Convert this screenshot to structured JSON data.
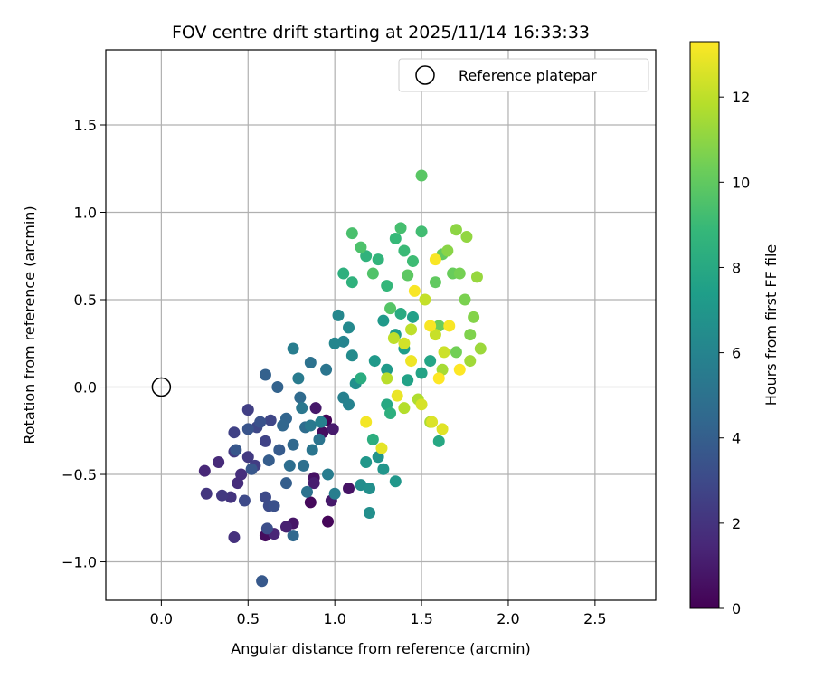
{
  "chart_data": {
    "type": "scatter",
    "title": "FOV centre drift starting at 2025/11/14 16:33:33",
    "xlabel": "Angular distance from reference (arcmin)",
    "ylabel": "Rotation from reference (arcmin)",
    "xlim": [
      -0.32,
      2.85
    ],
    "ylim": [
      -1.22,
      1.93
    ],
    "xticks": [
      0.0,
      0.5,
      1.0,
      1.5,
      2.0,
      2.5
    ],
    "xtick_labels": [
      "0.0",
      "0.5",
      "1.0",
      "1.5",
      "2.0",
      "2.5"
    ],
    "yticks": [
      -1.0,
      -0.5,
      0.0,
      0.5,
      1.0,
      1.5
    ],
    "ytick_labels": [
      "−1.0",
      "−0.5",
      "0.0",
      "0.5",
      "1.0",
      "1.5"
    ],
    "grid": true,
    "legend": {
      "placement": "top-right",
      "entries": [
        "Reference platepar"
      ]
    },
    "reference_point": {
      "label": "Reference platepar",
      "x": 0.0,
      "y": 0.0
    },
    "colorbar": {
      "label": "Hours from first FF file",
      "range": [
        0,
        13.3
      ],
      "ticks": [
        0,
        2,
        4,
        6,
        8,
        10,
        12
      ],
      "tick_labels": [
        "0",
        "2",
        "4",
        "6",
        "8",
        "10",
        "12"
      ],
      "colormap": "viridis"
    },
    "colormap_stops": [
      "#440154",
      "#482878",
      "#3e4989",
      "#31688e",
      "#26828e",
      "#1f9e89",
      "#35b779",
      "#6ece58",
      "#b5de2b",
      "#fde725"
    ],
    "series": [
      {
        "name": "FOV centre",
        "points": [
          [
            0.95,
            -0.19,
            0.1
          ],
          [
            0.96,
            -0.77,
            0.2
          ],
          [
            0.86,
            -0.66,
            0.3
          ],
          [
            0.6,
            -0.85,
            0.4
          ],
          [
            0.93,
            -0.26,
            0.5
          ],
          [
            0.88,
            -0.52,
            0.6
          ],
          [
            1.08,
            -0.58,
            0.7
          ],
          [
            0.76,
            -0.78,
            0.8
          ],
          [
            0.89,
            -0.12,
            0.9
          ],
          [
            0.98,
            -0.65,
            0.9
          ],
          [
            0.99,
            -0.24,
            1.0
          ],
          [
            0.88,
            -0.55,
            1.1
          ],
          [
            0.72,
            -0.8,
            1.2
          ],
          [
            0.65,
            -0.84,
            1.4
          ],
          [
            0.25,
            -0.48,
            1.5
          ],
          [
            0.33,
            -0.43,
            1.6
          ],
          [
            0.44,
            -0.55,
            1.7
          ],
          [
            0.46,
            -0.5,
            1.8
          ],
          [
            0.42,
            -0.86,
            1.9
          ],
          [
            0.4,
            -0.63,
            2.0
          ],
          [
            0.26,
            -0.61,
            2.1
          ],
          [
            0.35,
            -0.62,
            2.2
          ],
          [
            0.42,
            -0.37,
            2.3
          ],
          [
            0.5,
            -0.4,
            2.3
          ],
          [
            0.54,
            -0.45,
            2.4
          ],
          [
            0.5,
            -0.13,
            2.5
          ],
          [
            0.42,
            -0.26,
            2.6
          ],
          [
            0.6,
            -0.31,
            2.7
          ],
          [
            0.63,
            -0.19,
            2.8
          ],
          [
            0.55,
            -0.23,
            2.9
          ],
          [
            0.6,
            -0.63,
            3.0
          ],
          [
            0.48,
            -0.65,
            3.0
          ],
          [
            0.62,
            -0.68,
            3.1
          ],
          [
            0.61,
            -0.81,
            3.2
          ],
          [
            0.65,
            -0.68,
            3.3
          ],
          [
            0.57,
            -0.2,
            3.4
          ],
          [
            0.5,
            -0.24,
            3.5
          ],
          [
            0.43,
            -0.36,
            3.6
          ],
          [
            0.52,
            -0.47,
            3.6
          ],
          [
            0.58,
            -1.11,
            3.7
          ],
          [
            0.68,
            -0.36,
            3.8
          ],
          [
            0.62,
            -0.42,
            3.9
          ],
          [
            0.72,
            -0.55,
            4.0
          ],
          [
            0.6,
            0.07,
            4.1
          ],
          [
            0.67,
            -0.0,
            4.2
          ],
          [
            0.72,
            -0.18,
            4.3
          ],
          [
            0.7,
            -0.22,
            4.4
          ],
          [
            0.76,
            -0.33,
            4.5
          ],
          [
            0.8,
            -0.06,
            4.6
          ],
          [
            0.83,
            -0.23,
            4.7
          ],
          [
            0.76,
            -0.85,
            4.5
          ],
          [
            0.74,
            -0.45,
            4.8
          ],
          [
            0.82,
            -0.45,
            4.9
          ],
          [
            0.84,
            -0.6,
            5.0
          ],
          [
            0.91,
            -0.3,
            5.1
          ],
          [
            0.87,
            -0.36,
            5.2
          ],
          [
            0.86,
            0.14,
            5.0
          ],
          [
            0.95,
            0.1,
            5.2
          ],
          [
            0.81,
            -0.12,
            5.3
          ],
          [
            0.86,
            -0.22,
            5.4
          ],
          [
            0.79,
            0.05,
            5.5
          ],
          [
            0.76,
            0.22,
            5.6
          ],
          [
            0.96,
            -0.5,
            5.6
          ],
          [
            1.0,
            -0.61,
            5.7
          ],
          [
            0.92,
            -0.2,
            5.8
          ],
          [
            1.05,
            -0.06,
            5.8
          ],
          [
            1.08,
            -0.1,
            5.9
          ],
          [
            1.05,
            0.26,
            6.0
          ],
          [
            1.0,
            0.25,
            6.1
          ],
          [
            1.02,
            0.41,
            6.2
          ],
          [
            1.08,
            0.34,
            6.3
          ],
          [
            1.1,
            0.18,
            6.4
          ],
          [
            1.15,
            -0.56,
            6.5
          ],
          [
            1.2,
            -0.58,
            6.6
          ],
          [
            1.2,
            -0.72,
            6.6
          ],
          [
            1.12,
            0.02,
            6.6
          ],
          [
            1.25,
            -0.4,
            6.8
          ],
          [
            1.28,
            -0.47,
            6.9
          ],
          [
            1.35,
            -0.54,
            7.0
          ],
          [
            1.18,
            -0.43,
            7.0
          ],
          [
            1.23,
            0.15,
            7.1
          ],
          [
            1.28,
            0.38,
            7.1
          ],
          [
            1.3,
            0.1,
            7.2
          ],
          [
            1.35,
            0.3,
            7.3
          ],
          [
            1.4,
            0.22,
            7.4
          ],
          [
            1.45,
            0.4,
            7.5
          ],
          [
            1.42,
            0.04,
            7.6
          ],
          [
            1.5,
            0.08,
            7.7
          ],
          [
            1.55,
            0.15,
            7.8
          ],
          [
            1.6,
            -0.31,
            7.9
          ],
          [
            1.3,
            -0.1,
            8.0
          ],
          [
            1.38,
            0.42,
            8.1
          ],
          [
            1.15,
            0.05,
            8.2
          ],
          [
            1.22,
            -0.3,
            8.3
          ],
          [
            1.32,
            -0.15,
            8.4
          ],
          [
            1.05,
            0.65,
            8.4
          ],
          [
            1.1,
            0.6,
            8.5
          ],
          [
            1.18,
            0.75,
            8.6
          ],
          [
            1.25,
            0.73,
            8.7
          ],
          [
            1.3,
            0.58,
            8.8
          ],
          [
            1.35,
            0.85,
            8.9
          ],
          [
            1.4,
            0.78,
            9.0
          ],
          [
            1.45,
            0.72,
            9.1
          ],
          [
            1.5,
            0.89,
            9.2
          ],
          [
            1.38,
            0.91,
            9.3
          ],
          [
            1.1,
            0.88,
            9.4
          ],
          [
            1.15,
            0.8,
            9.5
          ],
          [
            1.22,
            0.65,
            9.6
          ],
          [
            1.32,
            0.45,
            9.7
          ],
          [
            1.5,
            1.21,
            9.8
          ],
          [
            1.42,
            0.64,
            9.9
          ],
          [
            1.58,
            0.6,
            10.0
          ],
          [
            1.62,
            0.76,
            10.1
          ],
          [
            1.68,
            0.65,
            10.2
          ],
          [
            1.6,
            0.35,
            10.3
          ],
          [
            1.7,
            0.2,
            10.4
          ],
          [
            1.72,
            0.65,
            10.5
          ],
          [
            1.75,
            0.5,
            10.6
          ],
          [
            1.78,
            0.3,
            10.7
          ],
          [
            1.8,
            0.4,
            10.8
          ],
          [
            1.65,
            0.78,
            10.9
          ],
          [
            1.7,
            0.9,
            11.0
          ],
          [
            1.76,
            0.86,
            11.1
          ],
          [
            1.82,
            0.63,
            11.2
          ],
          [
            1.84,
            0.22,
            11.3
          ],
          [
            1.78,
            0.15,
            11.4
          ],
          [
            1.62,
            0.1,
            11.5
          ],
          [
            1.55,
            -0.2,
            11.6
          ],
          [
            1.48,
            -0.07,
            11.7
          ],
          [
            1.4,
            -0.12,
            11.8
          ],
          [
            1.3,
            0.05,
            11.9
          ],
          [
            1.34,
            0.28,
            12.0
          ],
          [
            1.44,
            0.33,
            12.0
          ],
          [
            1.52,
            0.5,
            12.1
          ],
          [
            1.58,
            0.3,
            12.2
          ],
          [
            1.63,
            0.2,
            12.3
          ],
          [
            1.4,
            0.25,
            12.4
          ],
          [
            1.5,
            -0.1,
            12.5
          ],
          [
            1.56,
            -0.2,
            12.6
          ],
          [
            1.62,
            -0.24,
            12.7
          ],
          [
            1.27,
            -0.35,
            12.8
          ],
          [
            1.36,
            -0.05,
            12.9
          ],
          [
            1.44,
            0.15,
            13.0
          ],
          [
            1.18,
            -0.2,
            13.1
          ],
          [
            1.55,
            0.35,
            13.2
          ],
          [
            1.46,
            0.55,
            13.2
          ],
          [
            1.58,
            0.73,
            13.2
          ],
          [
            1.66,
            0.35,
            13.2
          ],
          [
            1.72,
            0.1,
            13.3
          ],
          [
            1.6,
            0.05,
            13.3
          ]
        ]
      }
    ]
  }
}
